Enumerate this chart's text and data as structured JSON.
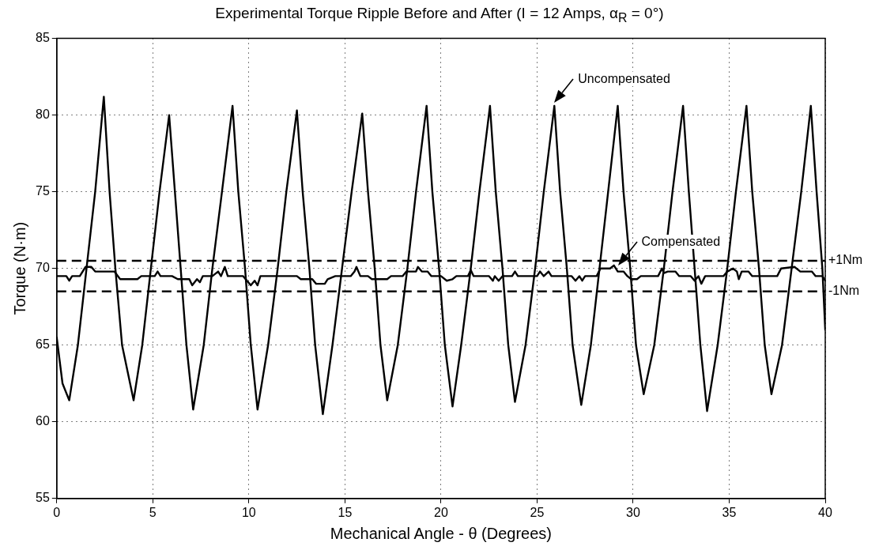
{
  "chart_data": {
    "type": "line",
    "title": "Experimental Torque Ripple Before and After (I = 12 Amps, α$_{R}$ = 0°)",
    "xlabel": "Mechanical Angle - θ (Degrees)",
    "ylabel": "Torque (N·m)",
    "xlim": [
      0,
      40
    ],
    "xticks": [
      0,
      5,
      10,
      15,
      20,
      25,
      30,
      35,
      40
    ],
    "ylim": [
      55,
      85
    ],
    "yticks": [
      55,
      60,
      65,
      70,
      75,
      80,
      85
    ],
    "grid": true,
    "legend": false,
    "marker": "none",
    "line_style": "solid",
    "series": [
      {
        "color": "#000000",
        "x": [
          0,
          0.3,
          0.65,
          1.1,
          1.55,
          2.0,
          2.45,
          2.75,
          3.05,
          3.4,
          4.0,
          4.45,
          4.9,
          5.35,
          5.85,
          6.15,
          6.45,
          6.75,
          7.1,
          7.65,
          8.1,
          8.6,
          9.15,
          9.45,
          9.8,
          10.1,
          10.45,
          11.0,
          11.5,
          11.95,
          12.5,
          12.8,
          13.15,
          13.45,
          13.85,
          14.35,
          14.85,
          15.35,
          15.9,
          16.2,
          16.55,
          16.85,
          17.2,
          17.75,
          18.25,
          18.7,
          19.25,
          19.55,
          19.9,
          20.2,
          20.6,
          21.05,
          21.55,
          22.0,
          22.55,
          22.85,
          23.2,
          23.5,
          23.85,
          24.4,
          24.9,
          25.35,
          25.9,
          26.2,
          26.55,
          26.85,
          27.3,
          27.8,
          28.25,
          28.7,
          29.2,
          29.5,
          29.85,
          30.15,
          30.55,
          31.1,
          31.6,
          32.05,
          32.6,
          32.9,
          33.2,
          33.5,
          33.85,
          34.4,
          34.9,
          35.35,
          35.9,
          36.2,
          36.55,
          36.85,
          37.2,
          37.75,
          38.25,
          38.75,
          39.25,
          39.55,
          39.85,
          40
        ],
        "values": [
          65.5,
          62.5,
          61.4,
          65,
          70,
          75,
          81.2,
          75,
          70,
          65,
          61.4,
          65,
          70,
          75,
          80.0,
          75,
          70,
          65,
          60.8,
          65,
          70,
          75,
          80.6,
          75,
          70,
          65,
          60.8,
          65,
          70,
          75,
          80.3,
          75,
          70,
          65,
          60.5,
          65,
          70,
          75,
          80.1,
          75,
          70,
          65,
          61.4,
          65,
          70,
          75,
          80.6,
          75,
          70,
          65,
          61.0,
          65,
          70,
          75,
          80.6,
          75,
          70,
          65,
          61.3,
          65,
          70,
          75,
          80.6,
          75,
          70,
          65,
          61.1,
          65,
          70,
          75,
          80.6,
          75,
          70,
          65,
          61.8,
          65,
          70,
          75,
          80.6,
          75,
          70,
          65,
          60.7,
          65,
          70,
          75,
          80.6,
          75,
          70,
          65,
          61.8,
          65,
          70,
          75,
          80.6,
          75,
          70,
          66
        ]
      },
      {
        "color": "#000000",
        "x": [
          0,
          0.5,
          0.65,
          0.8,
          1.2,
          1.5,
          1.8,
          2.0,
          3.0,
          3.3,
          4.2,
          4.4,
          5.1,
          5.25,
          5.4,
          6.0,
          6.3,
          6.9,
          7.05,
          7.3,
          7.45,
          7.6,
          8.1,
          8.4,
          8.55,
          8.75,
          8.9,
          9.7,
          9.9,
          10.1,
          10.3,
          10.45,
          10.6,
          12.5,
          12.7,
          13.3,
          13.5,
          13.95,
          14.1,
          14.5,
          15.3,
          15.5,
          15.6,
          15.8,
          16.2,
          16.4,
          17.2,
          17.4,
          18.0,
          18.2,
          18.7,
          18.8,
          19.0,
          19.3,
          19.5,
          20.0,
          20.3,
          20.6,
          20.8,
          21.4,
          21.55,
          21.7,
          22.5,
          22.7,
          22.8,
          23.0,
          23.2,
          23.7,
          23.85,
          24.0,
          25.0,
          25.15,
          25.35,
          25.6,
          25.75,
          26.8,
          27.0,
          27.2,
          27.35,
          27.5,
          28.1,
          28.3,
          28.8,
          29.0,
          29.2,
          29.5,
          29.7,
          29.9,
          30.2,
          30.4,
          31.3,
          31.5,
          31.6,
          31.8,
          32.2,
          32.4,
          33.0,
          33.2,
          33.4,
          33.55,
          33.75,
          34.7,
          34.9,
          35.2,
          35.4,
          35.5,
          35.65,
          36.0,
          36.2,
          37.5,
          37.7,
          38.4,
          38.7,
          39.3,
          39.5,
          39.85,
          40
        ],
        "values": [
          69.5,
          69.5,
          69.2,
          69.5,
          69.5,
          70.1,
          70.1,
          69.8,
          69.8,
          69.3,
          69.3,
          69.5,
          69.5,
          69.8,
          69.5,
          69.5,
          69.3,
          69.3,
          68.9,
          69.3,
          69.1,
          69.5,
          69.5,
          69.8,
          69.5,
          70.1,
          69.5,
          69.5,
          69.2,
          68.9,
          69.2,
          68.9,
          69.5,
          69.5,
          69.3,
          69.3,
          69.0,
          69.0,
          69.3,
          69.5,
          69.5,
          69.8,
          70.1,
          69.5,
          69.5,
          69.3,
          69.3,
          69.5,
          69.5,
          69.8,
          69.8,
          70.1,
          69.8,
          69.8,
          69.5,
          69.5,
          69.2,
          69.3,
          69.5,
          69.5,
          69.9,
          69.5,
          69.5,
          69.2,
          69.5,
          69.2,
          69.5,
          69.5,
          69.8,
          69.5,
          69.5,
          69.8,
          69.5,
          69.8,
          69.5,
          69.5,
          69.2,
          69.5,
          69.2,
          69.5,
          69.5,
          70.0,
          70.0,
          70.2,
          69.8,
          69.8,
          69.5,
          69.3,
          69.3,
          69.5,
          69.5,
          70.0,
          69.7,
          69.8,
          69.8,
          69.5,
          69.5,
          69.2,
          69.5,
          69.0,
          69.5,
          69.5,
          69.8,
          70.0,
          69.8,
          69.3,
          69.8,
          69.8,
          69.5,
          69.5,
          70.0,
          70.1,
          69.8,
          69.8,
          69.5,
          69.5,
          69.2
        ]
      }
    ],
    "ref_lines": [
      {
        "axis": "y",
        "value": 70.5,
        "label": "+1Nm",
        "line_style": "dashed",
        "color": "#000000"
      },
      {
        "axis": "y",
        "value": 68.5,
        "label": "-1Nm",
        "line_style": "dashed",
        "color": "#000000"
      }
    ],
    "annotations": [
      {
        "text": "Uncompensated",
        "x": 25.9,
        "y": 80.6
      },
      {
        "text": "Compensated",
        "x": 29.2,
        "y": 70.0
      }
    ]
  }
}
